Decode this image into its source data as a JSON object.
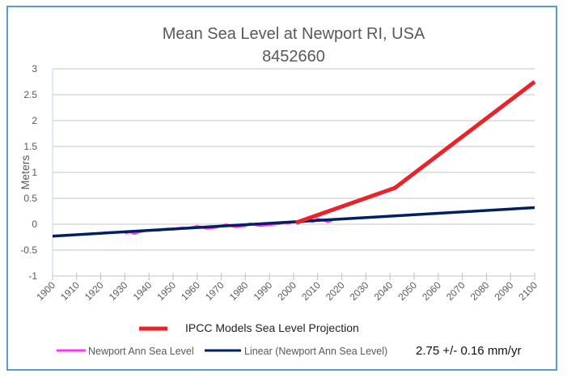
{
  "chart_data": {
    "type": "line",
    "title": "Mean Sea Level at Newport RI, USA",
    "subtitle": "8452660",
    "ylabel": "Meters",
    "xlabel": "",
    "xlim": [
      1900,
      2100
    ],
    "ylim": [
      -1,
      3
    ],
    "yticks": [
      "-1",
      "-0.5",
      "0",
      "0.5",
      "1",
      "1.5",
      "2",
      "2.5",
      "3"
    ],
    "xticks": [
      "1900",
      "1910",
      "1920",
      "1930",
      "1940",
      "1950",
      "1960",
      "1970",
      "1980",
      "1990",
      "2000",
      "2010",
      "2020",
      "2030",
      "2040",
      "2050",
      "2060",
      "2070",
      "2080",
      "2090",
      "2100"
    ],
    "grid": true,
    "series": [
      {
        "name": "Newport Ann Sea Level",
        "color": "#ff33ff",
        "x": [
          1930,
          1932,
          1934,
          1936,
          1938,
          1940,
          1942,
          1944,
          1946,
          1948,
          1950,
          1952,
          1954,
          1956,
          1958,
          1960,
          1962,
          1964,
          1966,
          1968,
          1970,
          1972,
          1974,
          1976,
          1978,
          1980,
          1982,
          1984,
          1986,
          1988,
          1990,
          1992,
          1994,
          1996,
          1998,
          2000,
          2002,
          2004,
          2006,
          2008,
          2010,
          2012,
          2014,
          2016
        ],
        "y": [
          -0.17,
          -0.15,
          -0.18,
          -0.15,
          -0.13,
          -0.12,
          -0.11,
          -0.12,
          -0.1,
          -0.09,
          -0.1,
          -0.08,
          -0.07,
          -0.08,
          -0.06,
          -0.04,
          -0.06,
          -0.08,
          -0.07,
          -0.06,
          -0.03,
          -0.01,
          -0.03,
          -0.05,
          -0.04,
          -0.03,
          0.01,
          -0.01,
          -0.03,
          -0.02,
          -0.01,
          0.0,
          0.01,
          0.03,
          0.02,
          0.05,
          0.03,
          0.05,
          0.07,
          0.05,
          0.1,
          0.08,
          0.05,
          0.07
        ]
      },
      {
        "name": "Linear (Newport Ann Sea Level)",
        "color": "#002060",
        "x": [
          1900,
          2100
        ],
        "y": [
          -0.23,
          0.32
        ]
      },
      {
        "name": "IPCC Models Sea Level Projection",
        "color": "#e8232b",
        "x": [
          2001,
          2042,
          2100
        ],
        "y": [
          0.03,
          0.7,
          2.75
        ]
      }
    ],
    "legend_position": "bottom",
    "annotation": "2.75 +/- 0.16 mm/yr"
  }
}
